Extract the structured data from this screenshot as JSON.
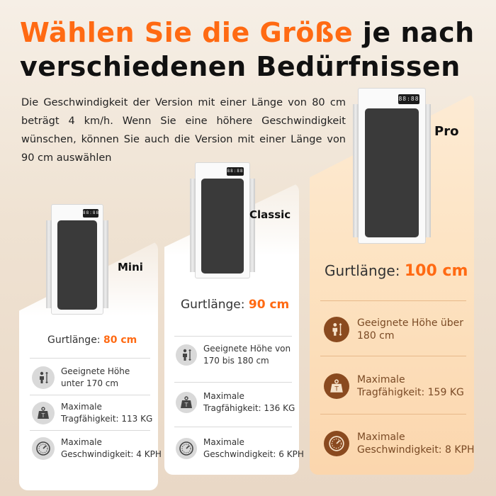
{
  "headline": {
    "line1_orange": "Wählen Sie die Größe",
    "line1_black": "je nach",
    "line2": "verschiedenen Bedürfnissen"
  },
  "description": "Die Geschwindigkeit der Version mit einer Länge von 80 cm beträgt 4 km/h. Wenn Sie eine höhere Geschwindigkeit wünschen, können Sie auch die Version mit einer Länge von 90 cm auswählen",
  "colors": {
    "accent": "#ff6a13",
    "pro_icon": "#8a4a1f"
  },
  "display_digits": "88:88",
  "models": {
    "mini": {
      "name": "Mini",
      "belt_label": "Gurtlänge:",
      "belt_value": "80 cm",
      "features": [
        {
          "icon": "height-icon",
          "line1": "Geeignete Höhe",
          "line2": "unter 170 cm"
        },
        {
          "icon": "weight-icon",
          "line1": "Maximale",
          "line2": "Tragfähigkeit: 113 KG"
        },
        {
          "icon": "speedometer-icon",
          "line1": "Maximale",
          "line2": "Geschwindigkeit: 4 KPH"
        }
      ]
    },
    "classic": {
      "name": "Classic",
      "belt_label": "Gurtlänge:",
      "belt_value": "90 cm",
      "features": [
        {
          "icon": "height-icon",
          "line1": "Geeignete Höhe von",
          "line2": "170 bis 180 cm"
        },
        {
          "icon": "weight-icon",
          "line1": "Maximale",
          "line2": "Tragfähigkeit: 136 KG"
        },
        {
          "icon": "speedometer-icon",
          "line1": "Maximale",
          "line2": "Geschwindigkeit: 6 KPH"
        }
      ]
    },
    "pro": {
      "name": "Pro",
      "belt_label": "Gurtlänge:",
      "belt_value": "100 cm",
      "features": [
        {
          "icon": "height-icon",
          "line1": "Geeignete Höhe über",
          "line2": "180 cm"
        },
        {
          "icon": "weight-icon",
          "line1": "Maximale",
          "line2": "Tragfähigkeit: 159 KG"
        },
        {
          "icon": "speedometer-icon",
          "line1": "Maximale",
          "line2": "Geschwindigkeit: 8 KPH"
        }
      ]
    }
  }
}
